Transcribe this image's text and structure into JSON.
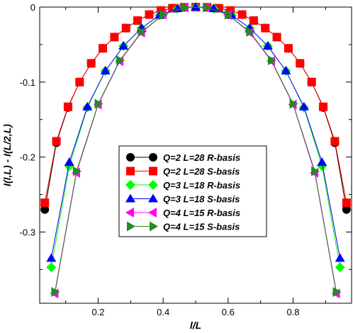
{
  "chart_data": {
    "type": "line",
    "title": "",
    "xlabel": "l/L",
    "ylabel": "I(l,L) - I(L/2,L)",
    "xlim": [
      0.02,
      0.98
    ],
    "ylim": [
      -0.395,
      0.0
    ],
    "xticks": [
      0.2,
      0.4,
      0.6,
      0.8
    ],
    "xtick_labels": [
      "0.2",
      "0.4",
      "0.6",
      "0.8"
    ],
    "yticks": [
      0,
      -0.1,
      -0.2,
      -0.3
    ],
    "ytick_labels": [
      "0",
      "-0.1",
      "-0.2",
      "-0.3"
    ],
    "grid": false,
    "legend_position": "center",
    "series": [
      {
        "name": "Q=2 L=28 R-basis",
        "color": "#000000",
        "marker": "circle",
        "x": [
          0.0357,
          0.0714,
          0.1071,
          0.1429,
          0.1786,
          0.2143,
          0.25,
          0.2857,
          0.3214,
          0.3571,
          0.3929,
          0.4286,
          0.4643,
          0.5,
          0.5357,
          0.5714,
          0.6071,
          0.6429,
          0.6786,
          0.7143,
          0.75,
          0.7857,
          0.8214,
          0.8571,
          0.8929,
          0.9286,
          0.9643
        ],
        "y": [
          -0.27,
          -0.181,
          -0.134,
          -0.1,
          -0.075,
          -0.055,
          -0.04,
          -0.028,
          -0.018,
          -0.01,
          -0.0045,
          -0.0015,
          -0.0003,
          0.0,
          -0.0003,
          -0.0015,
          -0.0045,
          -0.01,
          -0.018,
          -0.028,
          -0.04,
          -0.055,
          -0.075,
          -0.1,
          -0.134,
          -0.181,
          -0.27
        ]
      },
      {
        "name": "Q=2 L=28 S-basis",
        "color": "#ff0000",
        "marker": "square",
        "x": [
          0.0357,
          0.0714,
          0.1071,
          0.1429,
          0.1786,
          0.2143,
          0.25,
          0.2857,
          0.3214,
          0.3571,
          0.3929,
          0.4286,
          0.4643,
          0.5,
          0.5357,
          0.5714,
          0.6071,
          0.6429,
          0.6786,
          0.7143,
          0.75,
          0.7857,
          0.8214,
          0.8571,
          0.8929,
          0.9286,
          0.9643
        ],
        "y": [
          -0.261,
          -0.179,
          -0.133,
          -0.1,
          -0.075,
          -0.055,
          -0.04,
          -0.028,
          -0.018,
          -0.01,
          -0.0045,
          -0.0015,
          -0.0003,
          0.0,
          -0.0003,
          -0.0015,
          -0.0045,
          -0.01,
          -0.018,
          -0.028,
          -0.04,
          -0.055,
          -0.075,
          -0.1,
          -0.133,
          -0.179,
          -0.261
        ]
      },
      {
        "name": "Q=3 L=18 R-basis",
        "color": "#00ff00",
        "marker": "diamond",
        "x": [
          0.0556,
          0.1111,
          0.1667,
          0.2222,
          0.2778,
          0.3333,
          0.3889,
          0.4444,
          0.5,
          0.5556,
          0.6111,
          0.6667,
          0.7222,
          0.7778,
          0.8333,
          0.8889,
          0.9444
        ],
        "y": [
          -0.347,
          -0.212,
          -0.134,
          -0.085,
          -0.052,
          -0.028,
          -0.011,
          -0.002,
          0.0,
          -0.002,
          -0.011,
          -0.028,
          -0.052,
          -0.085,
          -0.134,
          -0.212,
          -0.347
        ]
      },
      {
        "name": "Q=3 L=18 S-basis",
        "color": "#0000ff",
        "marker": "triangle-up",
        "x": [
          0.0556,
          0.1111,
          0.1667,
          0.2222,
          0.2778,
          0.3333,
          0.3889,
          0.4444,
          0.5,
          0.5556,
          0.6111,
          0.6667,
          0.7222,
          0.7778,
          0.8333,
          0.8889,
          0.9444
        ],
        "y": [
          -0.335,
          -0.207,
          -0.133,
          -0.085,
          -0.052,
          -0.028,
          -0.011,
          -0.002,
          0.0,
          -0.002,
          -0.011,
          -0.028,
          -0.052,
          -0.085,
          -0.133,
          -0.207,
          -0.335
        ]
      },
      {
        "name": "Q=4 L=15 R-basis",
        "color": "#ff00ff",
        "marker": "triangle-left",
        "x": [
          0.0667,
          0.1333,
          0.2,
          0.2667,
          0.3333,
          0.4,
          0.4667,
          0.5333,
          0.6,
          0.6667,
          0.7333,
          0.8,
          0.8667,
          0.9333
        ],
        "y": [
          -0.382,
          -0.221,
          -0.13,
          -0.072,
          -0.034,
          -0.01,
          -0.0005,
          -0.0005,
          -0.01,
          -0.034,
          -0.072,
          -0.13,
          -0.221,
          -0.382
        ]
      },
      {
        "name": "Q=4 L=15 S-basis",
        "color": "#228b22",
        "marker": "triangle-right",
        "x": [
          0.0667,
          0.1333,
          0.2,
          0.2667,
          0.3333,
          0.4,
          0.4667,
          0.5333,
          0.6,
          0.6667,
          0.7333,
          0.8,
          0.8667,
          0.9333
        ],
        "y": [
          -0.38,
          -0.219,
          -0.129,
          -0.071,
          -0.033,
          -0.01,
          -0.0005,
          -0.0005,
          -0.01,
          -0.033,
          -0.071,
          -0.129,
          -0.219,
          -0.38
        ]
      }
    ]
  }
}
